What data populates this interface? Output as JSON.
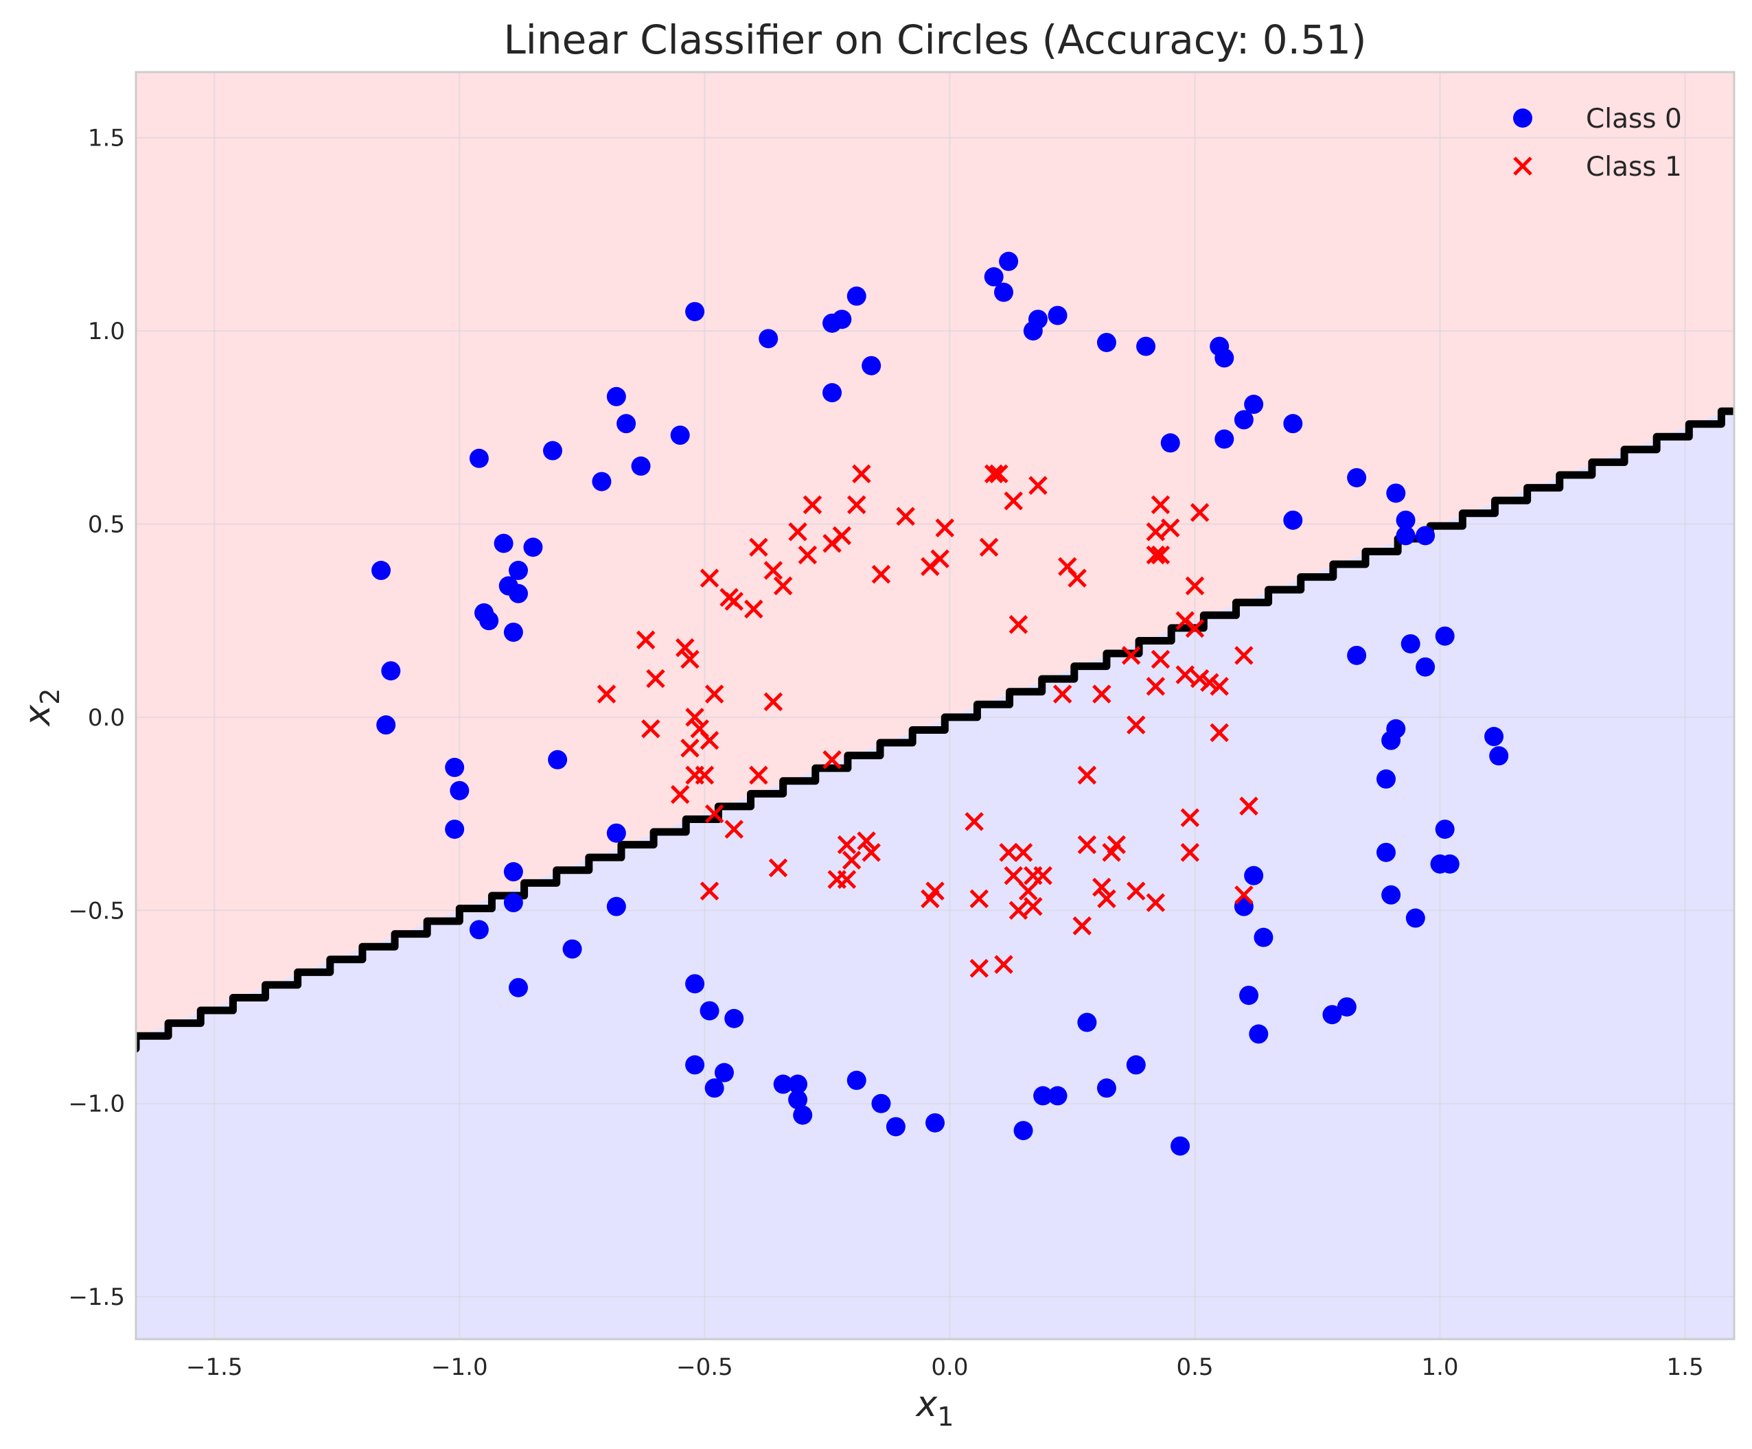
{
  "chart_data": {
    "type": "scatter",
    "title": "Linear Classifier on Circles (Accuracy: 0.51)",
    "xlabel": {
      "base": "x",
      "sub": "1"
    },
    "ylabel": {
      "base": "x",
      "sub": "2"
    },
    "xlim": [
      -1.66,
      1.6
    ],
    "ylim": [
      -1.61,
      1.67
    ],
    "xticks": [
      {
        "v": -1.5,
        "label": "−1.5"
      },
      {
        "v": -1.0,
        "label": "−1.0"
      },
      {
        "v": -0.5,
        "label": "−0.5"
      },
      {
        "v": 0.0,
        "label": "0.0"
      },
      {
        "v": 0.5,
        "label": "0.5"
      },
      {
        "v": 1.0,
        "label": "1.0"
      },
      {
        "v": 1.5,
        "label": "1.5"
      }
    ],
    "yticks": [
      {
        "v": -1.5,
        "label": "−1.5"
      },
      {
        "v": -1.0,
        "label": "−1.0"
      },
      {
        "v": -0.5,
        "label": "−0.5"
      },
      {
        "v": 0.0,
        "label": "0.0"
      },
      {
        "v": 0.5,
        "label": "0.5"
      },
      {
        "v": 1.0,
        "label": "1.0"
      },
      {
        "v": 1.5,
        "label": "1.5"
      }
    ],
    "grid": true,
    "legend_position": "top-right",
    "decision_boundary": {
      "slope": 0.5,
      "intercept": 0.0
    },
    "regions": {
      "above_color": "#ffe0e3",
      "below_color": "#e3e3ff",
      "boundary_color": "#000000"
    },
    "series": [
      {
        "name": "Class 0",
        "marker": "circle",
        "color": "#0000ff",
        "points": [
          [
            -1.16,
            0.38
          ],
          [
            -1.15,
            -0.02
          ],
          [
            -1.14,
            0.12
          ],
          [
            -1.01,
            -0.13
          ],
          [
            -1.0,
            -0.19
          ],
          [
            -1.01,
            -0.29
          ],
          [
            -0.96,
            0.67
          ],
          [
            -0.95,
            0.27
          ],
          [
            -0.94,
            0.25
          ],
          [
            -0.91,
            0.45
          ],
          [
            -0.9,
            0.34
          ],
          [
            -0.88,
            0.38
          ],
          [
            -0.88,
            0.32
          ],
          [
            -0.89,
            0.22
          ],
          [
            -0.85,
            0.44
          ],
          [
            -0.81,
            0.69
          ],
          [
            -0.8,
            -0.11
          ],
          [
            -0.96,
            -0.55
          ],
          [
            -0.89,
            -0.4
          ],
          [
            -0.89,
            -0.48
          ],
          [
            -0.88,
            -0.7
          ],
          [
            -0.77,
            -0.6
          ],
          [
            -0.71,
            0.61
          ],
          [
            -0.68,
            0.83
          ],
          [
            -0.66,
            0.76
          ],
          [
            -0.63,
            0.65
          ],
          [
            -0.68,
            -0.3
          ],
          [
            -0.68,
            -0.49
          ],
          [
            -0.55,
            0.73
          ],
          [
            -0.52,
            1.05
          ],
          [
            -0.52,
            -0.69
          ],
          [
            -0.49,
            -0.76
          ],
          [
            -0.44,
            -0.78
          ],
          [
            -0.52,
            -0.9
          ],
          [
            -0.46,
            -0.92
          ],
          [
            -0.48,
            -0.96
          ],
          [
            -0.37,
            0.98
          ],
          [
            -0.34,
            -0.95
          ],
          [
            -0.31,
            -0.95
          ],
          [
            -0.31,
            -0.99
          ],
          [
            -0.3,
            -1.03
          ],
          [
            -0.24,
            1.02
          ],
          [
            -0.22,
            1.03
          ],
          [
            -0.24,
            0.84
          ],
          [
            -0.19,
            1.09
          ],
          [
            -0.16,
            0.91
          ],
          [
            -0.19,
            -0.94
          ],
          [
            -0.14,
            -1.0
          ],
          [
            -0.11,
            -1.06
          ],
          [
            -0.03,
            -1.05
          ],
          [
            0.09,
            1.14
          ],
          [
            0.12,
            1.18
          ],
          [
            0.11,
            1.1
          ],
          [
            0.17,
            1.0
          ],
          [
            0.18,
            1.03
          ],
          [
            0.22,
            1.04
          ],
          [
            0.32,
            0.97
          ],
          [
            0.4,
            0.96
          ],
          [
            0.45,
            0.71
          ],
          [
            0.55,
            0.96
          ],
          [
            0.56,
            0.93
          ],
          [
            0.56,
            0.72
          ],
          [
            0.6,
            0.77
          ],
          [
            0.62,
            0.81
          ],
          [
            0.7,
            0.76
          ],
          [
            0.7,
            0.51
          ],
          [
            0.83,
            0.62
          ],
          [
            0.91,
            0.58
          ],
          [
            0.93,
            0.51
          ],
          [
            0.93,
            0.47
          ],
          [
            0.97,
            0.47
          ],
          [
            0.83,
            0.16
          ],
          [
            0.94,
            0.19
          ],
          [
            0.97,
            0.13
          ],
          [
            1.01,
            0.21
          ],
          [
            0.91,
            -0.03
          ],
          [
            0.9,
            -0.06
          ],
          [
            0.89,
            -0.16
          ],
          [
            1.11,
            -0.05
          ],
          [
            1.12,
            -0.1
          ],
          [
            1.01,
            -0.29
          ],
          [
            1.0,
            -0.38
          ],
          [
            1.02,
            -0.38
          ],
          [
            0.89,
            -0.35
          ],
          [
            0.9,
            -0.46
          ],
          [
            0.95,
            -0.52
          ],
          [
            0.62,
            -0.41
          ],
          [
            0.6,
            -0.49
          ],
          [
            0.64,
            -0.57
          ],
          [
            0.61,
            -0.72
          ],
          [
            0.63,
            -0.82
          ],
          [
            0.78,
            -0.77
          ],
          [
            0.81,
            -0.75
          ],
          [
            0.28,
            -0.79
          ],
          [
            0.38,
            -0.9
          ],
          [
            0.32,
            -0.96
          ],
          [
            0.19,
            -0.98
          ],
          [
            0.22,
            -0.98
          ],
          [
            0.15,
            -1.07
          ],
          [
            0.47,
            -1.11
          ]
        ]
      },
      {
        "name": "Class 1",
        "marker": "x",
        "color": "#ff0000",
        "points": [
          [
            -0.7,
            0.06
          ],
          [
            -0.62,
            0.2
          ],
          [
            -0.6,
            0.1
          ],
          [
            -0.61,
            -0.03
          ],
          [
            -0.54,
            0.18
          ],
          [
            -0.53,
            0.15
          ],
          [
            -0.52,
            0.0
          ],
          [
            -0.51,
            -0.03
          ],
          [
            -0.49,
            -0.06
          ],
          [
            -0.48,
            0.06
          ],
          [
            -0.53,
            -0.08
          ],
          [
            -0.52,
            -0.15
          ],
          [
            -0.5,
            -0.15
          ],
          [
            -0.55,
            -0.2
          ],
          [
            -0.48,
            -0.25
          ],
          [
            -0.49,
            0.36
          ],
          [
            -0.45,
            0.31
          ],
          [
            -0.44,
            0.3
          ],
          [
            -0.4,
            0.28
          ],
          [
            -0.39,
            0.44
          ],
          [
            -0.36,
            0.38
          ],
          [
            -0.34,
            0.34
          ],
          [
            -0.36,
            0.04
          ],
          [
            -0.39,
            -0.15
          ],
          [
            -0.44,
            -0.29
          ],
          [
            -0.35,
            -0.39
          ],
          [
            -0.49,
            -0.45
          ],
          [
            -0.31,
            0.48
          ],
          [
            -0.28,
            0.55
          ],
          [
            -0.29,
            0.42
          ],
          [
            -0.24,
            0.45
          ],
          [
            -0.22,
            0.47
          ],
          [
            -0.19,
            0.55
          ],
          [
            -0.18,
            0.63
          ],
          [
            -0.14,
            0.37
          ],
          [
            -0.09,
            0.52
          ],
          [
            -0.04,
            0.39
          ],
          [
            -0.02,
            0.41
          ],
          [
            -0.01,
            0.49
          ],
          [
            -0.24,
            -0.11
          ],
          [
            -0.21,
            -0.33
          ],
          [
            -0.2,
            -0.37
          ],
          [
            -0.23,
            -0.42
          ],
          [
            -0.21,
            -0.42
          ],
          [
            -0.17,
            -0.32
          ],
          [
            -0.16,
            -0.35
          ],
          [
            0.05,
            -0.27
          ],
          [
            -0.04,
            -0.47
          ],
          [
            -0.03,
            -0.45
          ],
          [
            0.06,
            -0.47
          ],
          [
            0.06,
            -0.65
          ],
          [
            0.11,
            -0.64
          ],
          [
            0.08,
            0.44
          ],
          [
            0.09,
            0.63
          ],
          [
            0.1,
            0.63
          ],
          [
            0.13,
            0.56
          ],
          [
            0.18,
            0.6
          ],
          [
            0.14,
            0.24
          ],
          [
            0.23,
            0.06
          ],
          [
            0.24,
            0.39
          ],
          [
            0.26,
            0.36
          ],
          [
            0.12,
            -0.35
          ],
          [
            0.15,
            -0.35
          ],
          [
            0.13,
            -0.41
          ],
          [
            0.17,
            -0.41
          ],
          [
            0.19,
            -0.41
          ],
          [
            0.16,
            -0.45
          ],
          [
            0.17,
            -0.49
          ],
          [
            0.14,
            -0.5
          ],
          [
            0.28,
            -0.15
          ],
          [
            0.28,
            -0.33
          ],
          [
            0.31,
            0.06
          ],
          [
            0.33,
            -0.35
          ],
          [
            0.34,
            -0.33
          ],
          [
            0.31,
            -0.44
          ],
          [
            0.32,
            -0.47
          ],
          [
            0.27,
            -0.54
          ],
          [
            0.37,
            0.16
          ],
          [
            0.38,
            -0.02
          ],
          [
            0.38,
            -0.45
          ],
          [
            0.42,
            0.42
          ],
          [
            0.43,
            0.42
          ],
          [
            0.42,
            0.48
          ],
          [
            0.43,
            0.55
          ],
          [
            0.45,
            0.49
          ],
          [
            0.43,
            0.15
          ],
          [
            0.42,
            0.08
          ],
          [
            0.48,
            0.25
          ],
          [
            0.5,
            0.23
          ],
          [
            0.5,
            0.34
          ],
          [
            0.51,
            0.53
          ],
          [
            0.48,
            0.11
          ],
          [
            0.51,
            0.1
          ],
          [
            0.53,
            0.09
          ],
          [
            0.55,
            0.08
          ],
          [
            0.6,
            0.16
          ],
          [
            0.55,
            -0.04
          ],
          [
            0.49,
            -0.26
          ],
          [
            0.49,
            -0.35
          ],
          [
            0.42,
            -0.48
          ],
          [
            0.61,
            -0.23
          ],
          [
            0.6,
            -0.46
          ]
        ]
      }
    ]
  }
}
